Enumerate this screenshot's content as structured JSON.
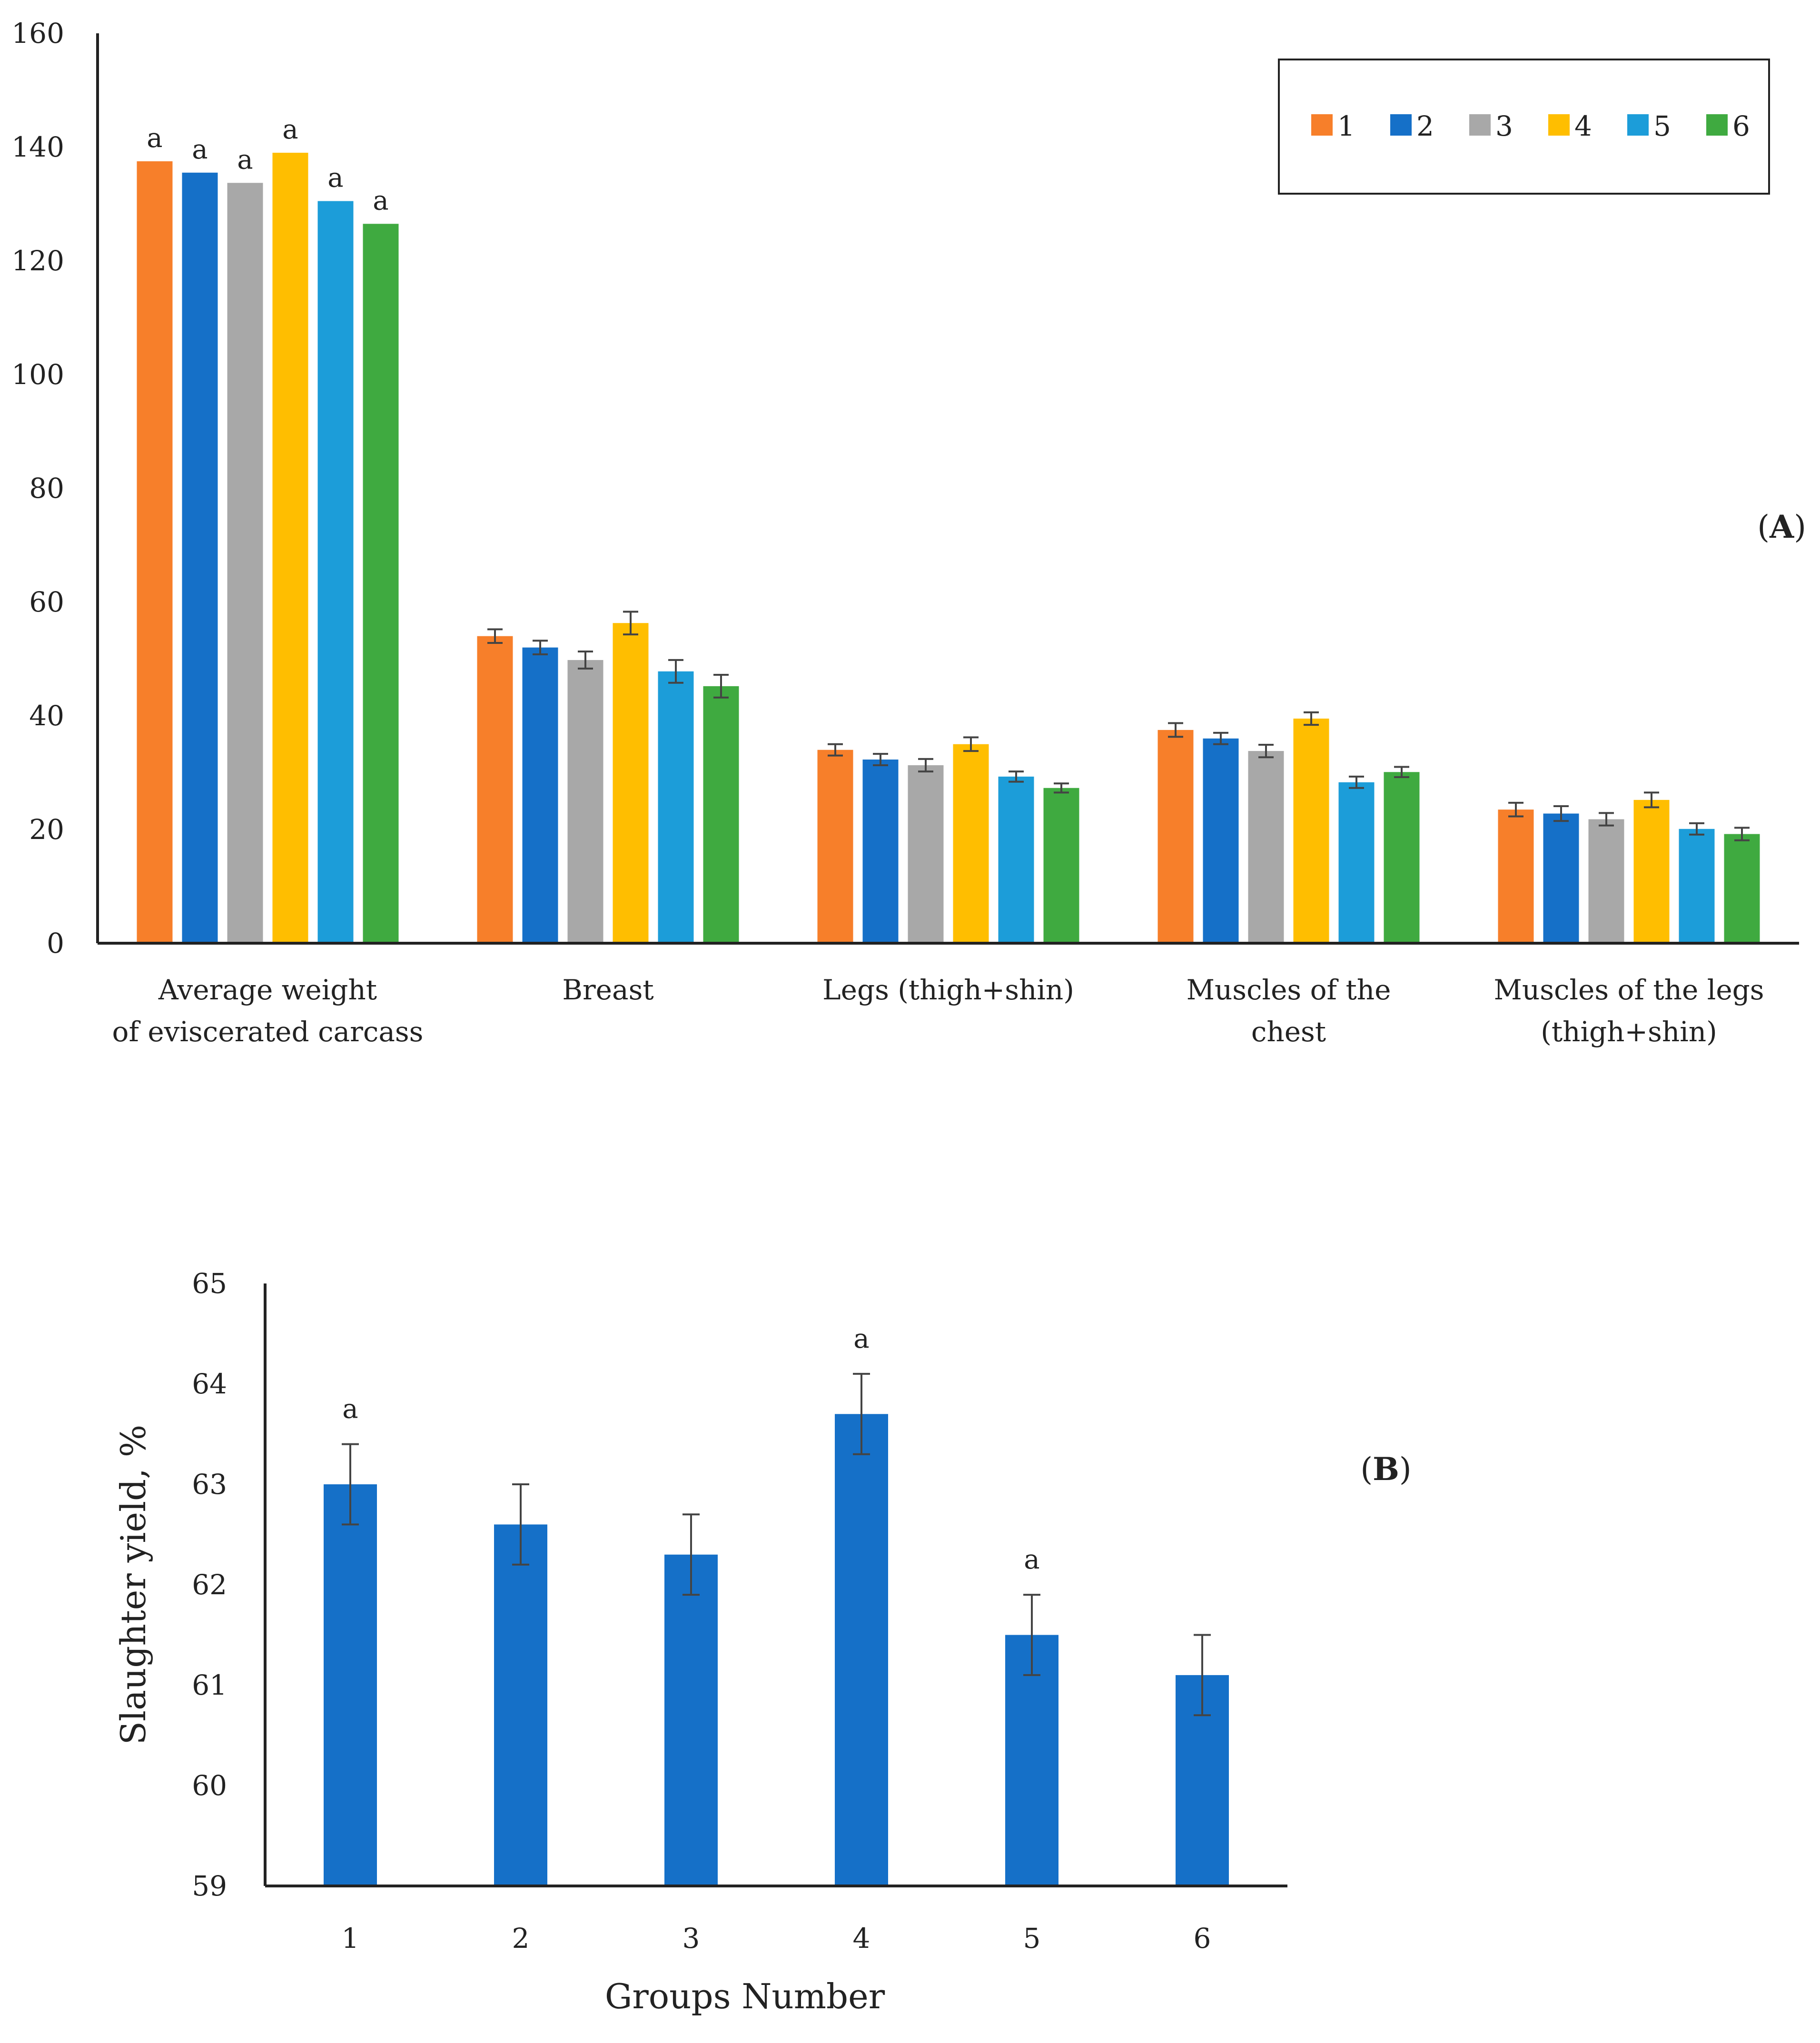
{
  "chart_data": [
    {
      "type": "bar",
      "panel_label": "(A)",
      "panel_letter": "A",
      "categories": [
        [
          "Average weight",
          "of eviscerated carcass"
        ],
        [
          "Breast"
        ],
        [
          "Legs (thigh+shin)"
        ],
        [
          "Muscles of the",
          "chest"
        ],
        [
          "Muscles of the legs",
          "(thigh+shin)"
        ]
      ],
      "ylim": [
        0,
        160
      ],
      "yticks": [
        0,
        20,
        40,
        60,
        80,
        100,
        120,
        140,
        160
      ],
      "legend_position": "top-right",
      "series": [
        {
          "name": "1",
          "color": "#F77F2A",
          "values": [
            137.5,
            54,
            34,
            37.5,
            23.5
          ],
          "errors": [
            null,
            1.2,
            1.0,
            1.2,
            1.2
          ]
        },
        {
          "name": "2",
          "color": "#1570C8",
          "values": [
            135.5,
            52,
            32.3,
            36,
            22.8
          ],
          "errors": [
            null,
            1.2,
            1.0,
            1.0,
            1.3
          ]
        },
        {
          "name": "3",
          "color": "#A8A8A8",
          "values": [
            133.7,
            49.8,
            31.3,
            33.8,
            21.8
          ],
          "errors": [
            null,
            1.5,
            1.1,
            1.1,
            1.1
          ]
        },
        {
          "name": "4",
          "color": "#FFBE00",
          "values": [
            139,
            56.3,
            35,
            39.5,
            25.2
          ],
          "errors": [
            null,
            2.0,
            1.2,
            1.1,
            1.3
          ]
        },
        {
          "name": "5",
          "color": "#1C9DD9",
          "values": [
            130.5,
            47.8,
            29.3,
            28.3,
            20.1
          ],
          "errors": [
            null,
            2.0,
            0.9,
            1.0,
            1.0
          ]
        },
        {
          "name": "6",
          "color": "#3FAA40",
          "values": [
            126.5,
            45.2,
            27.3,
            30.1,
            19.2
          ],
          "errors": [
            null,
            2.0,
            0.8,
            0.9,
            1.1
          ]
        }
      ],
      "annotations": [
        "a",
        "a",
        "a",
        "a",
        "a",
        "a"
      ]
    },
    {
      "type": "bar",
      "panel_label": "(B)",
      "panel_letter": "B",
      "categories": [
        "1",
        "2",
        "3",
        "4",
        "5",
        "6"
      ],
      "values": [
        63.0,
        62.6,
        62.3,
        63.7,
        61.5,
        61.1
      ],
      "errors": [
        0.4,
        0.4,
        0.4,
        0.4,
        0.4,
        0.4
      ],
      "annotations": [
        "a",
        "",
        "",
        "a",
        "a",
        ""
      ],
      "color": "#1570C8",
      "ylim": [
        59,
        65
      ],
      "yticks": [
        59,
        60,
        61,
        62,
        63,
        64,
        65
      ],
      "xlabel": "Groups Number",
      "ylabel": "Slaughter yield, %"
    }
  ]
}
